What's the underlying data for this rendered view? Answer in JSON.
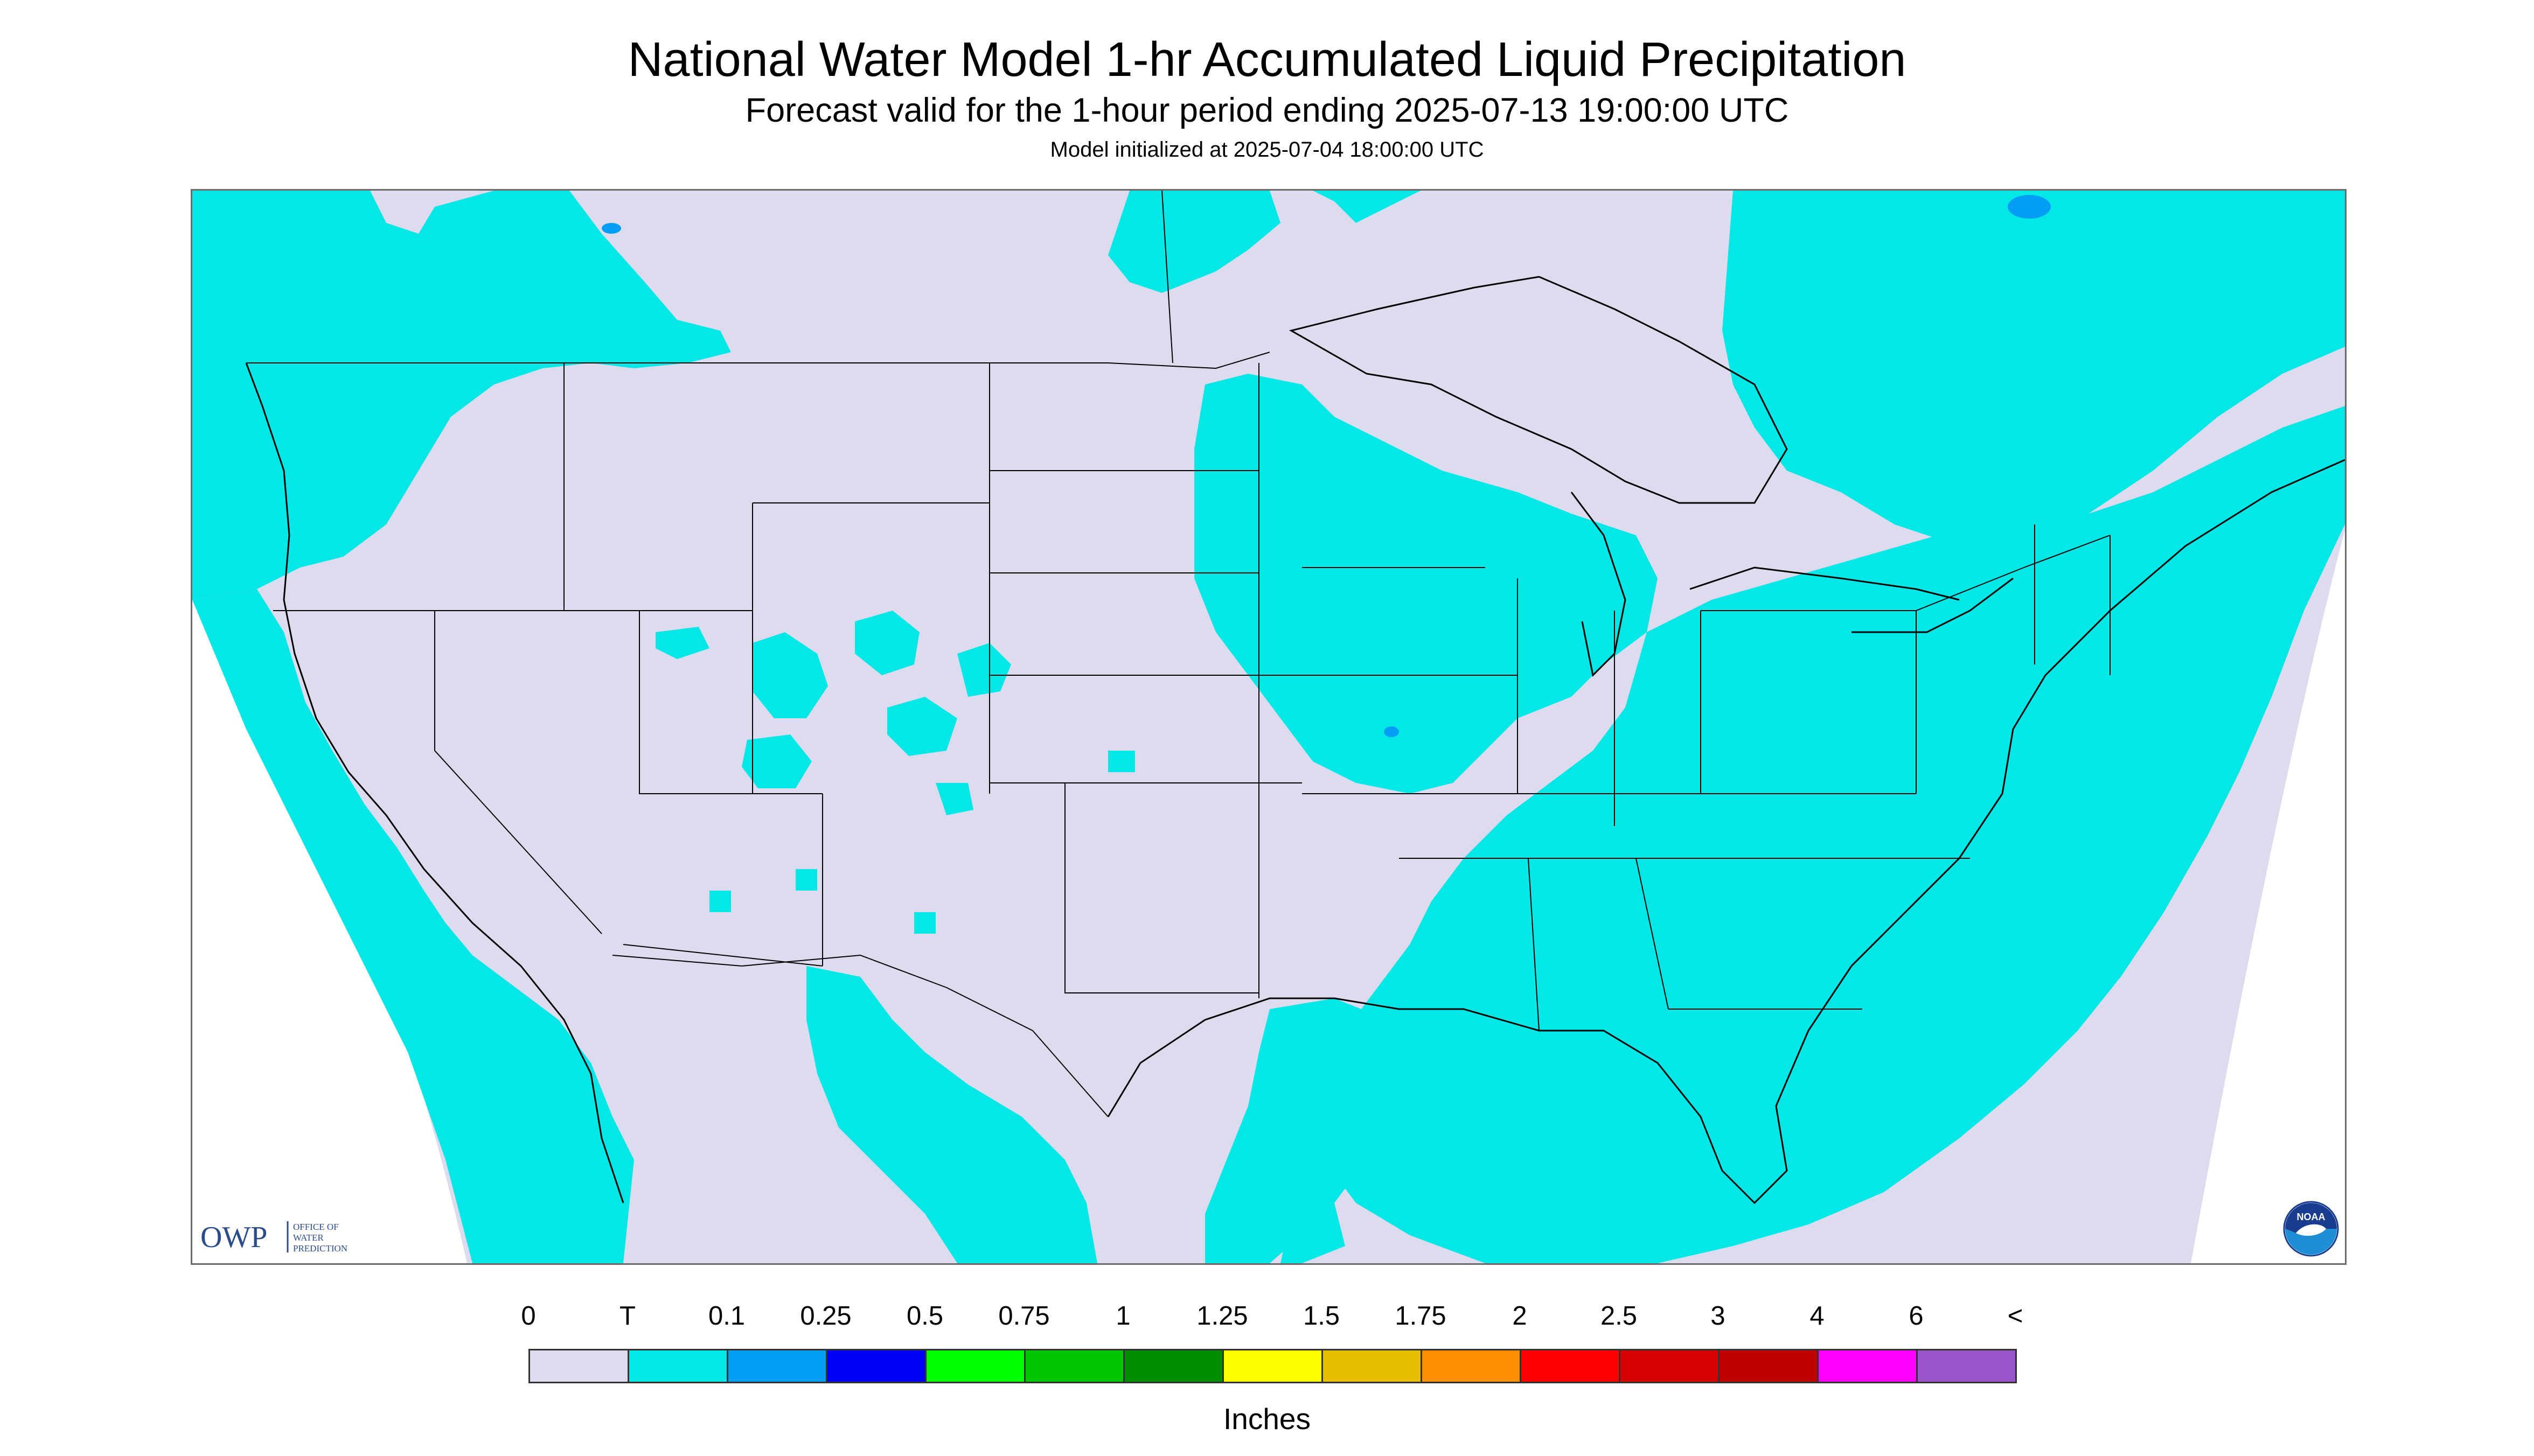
{
  "header": {
    "title": "National Water Model 1-hr Accumulated Liquid Precipitation",
    "subtitle": "Forecast valid for the 1-hour period ending 2025-07-13 19:00:00 UTC",
    "init": "Model initialized at 2025-07-04 18:00:00 UTC"
  },
  "map": {
    "region": "Contiguous United States",
    "colors": {
      "no_precip": "#dcdcee",
      "trace": "#04e7e7",
      "light_blue": "#039ef4",
      "outline": "#000000",
      "border_gray": "#6b6b6b"
    },
    "hotspot_value_category": "0.1"
  },
  "logos": {
    "owp_text": "OWP",
    "owp_subtext": [
      "OFFICE OF",
      "WATER",
      "PREDICTION"
    ],
    "noaa_text": "NOAA"
  },
  "legend": {
    "labels": [
      "0",
      "T",
      "0.1",
      "0.25",
      "0.5",
      "0.75",
      "1",
      "1.25",
      "1.5",
      "1.75",
      "2",
      "2.5",
      "3",
      "4",
      "6",
      "<"
    ],
    "colors": [
      "#dcdcee",
      "#04e7e7",
      "#039ef4",
      "#0000f6",
      "#00ff00",
      "#00c600",
      "#008e00",
      "#ffff00",
      "#e7bf00",
      "#ff8e00",
      "#ff0000",
      "#d60000",
      "#c00000",
      "#ff00ff",
      "#9955c9"
    ],
    "units": "Inches"
  }
}
